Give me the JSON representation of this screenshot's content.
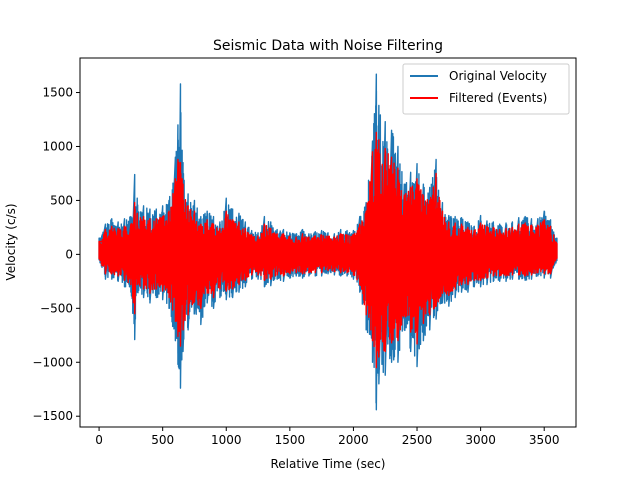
{
  "chart_data": {
    "type": "line",
    "title": "Seismic Data with Noise Filtering",
    "xlabel": "Relative Time (sec)",
    "ylabel": "Velocity (c/s)",
    "xlim": [
      -150,
      3750
    ],
    "ylim": [
      -1600,
      1820
    ],
    "xticks": [
      0,
      500,
      1000,
      1500,
      2000,
      2500,
      3000,
      3500
    ],
    "yticks": [
      -1500,
      -1000,
      -500,
      0,
      500,
      1000,
      1500
    ],
    "xtick_labels": [
      "0",
      "500",
      "1000",
      "1500",
      "2000",
      "2500",
      "3000",
      "3500"
    ],
    "ytick_labels": [
      "−1500",
      "−1000",
      "−500",
      "0",
      "500",
      "1000",
      "1500"
    ],
    "grid": false,
    "legend_position": "top-right",
    "series": [
      {
        "name": "Original Velocity",
        "color": "#1f77b4",
        "envelope": {
          "t": [
            0,
            50,
            100,
            150,
            200,
            250,
            280,
            300,
            350,
            400,
            450,
            500,
            550,
            600,
            620,
            640,
            660,
            700,
            750,
            800,
            850,
            900,
            950,
            1000,
            1050,
            1100,
            1150,
            1200,
            1250,
            1300,
            1350,
            1400,
            1450,
            1500,
            1550,
            1600,
            1650,
            1700,
            1750,
            1800,
            1850,
            1900,
            1950,
            2000,
            2050,
            2100,
            2150,
            2180,
            2200,
            2250,
            2300,
            2350,
            2400,
            2450,
            2500,
            2550,
            2600,
            2650,
            2700,
            2750,
            2800,
            2850,
            2900,
            2950,
            3000,
            3050,
            3100,
            3150,
            3200,
            3250,
            3300,
            3350,
            3400,
            3450,
            3500,
            3550,
            3600
          ],
          "upper": [
            150,
            280,
            330,
            300,
            330,
            350,
            740,
            520,
            450,
            420,
            420,
            450,
            500,
            900,
            1200,
            1580,
            850,
            560,
            500,
            350,
            400,
            350,
            300,
            520,
            420,
            380,
            300,
            220,
            200,
            350,
            300,
            230,
            230,
            200,
            190,
            230,
            190,
            210,
            220,
            200,
            190,
            230,
            220,
            220,
            350,
            480,
            1050,
            1670,
            1380,
            1230,
            1150,
            1000,
            650,
            760,
            840,
            650,
            620,
            880,
            480,
            360,
            350,
            340,
            300,
            260,
            360,
            310,
            300,
            280,
            290,
            300,
            340,
            350,
            330,
            330,
            400,
            320,
            150
          ],
          "lower": [
            -50,
            -230,
            -230,
            -250,
            -300,
            -350,
            -790,
            -350,
            -400,
            -450,
            -400,
            -420,
            -500,
            -800,
            -1020,
            -1240,
            -900,
            -700,
            -550,
            -650,
            -450,
            -500,
            -400,
            -420,
            -400,
            -350,
            -300,
            -230,
            -230,
            -300,
            -290,
            -230,
            -250,
            -220,
            -200,
            -220,
            -200,
            -200,
            -200,
            -180,
            -190,
            -200,
            -200,
            -230,
            -350,
            -700,
            -1000,
            -1440,
            -1200,
            -1120,
            -1000,
            -1000,
            -700,
            -900,
            -1040,
            -800,
            -700,
            -600,
            -450,
            -480,
            -400,
            -350,
            -350,
            -300,
            -300,
            -280,
            -250,
            -250,
            -250,
            -230,
            -230,
            -240,
            -230,
            -200,
            -220,
            -220,
            -60
          ]
        }
      },
      {
        "name": "Filtered (Events)",
        "color": "#ff0000",
        "envelope": {
          "t": [
            0,
            50,
            100,
            150,
            200,
            250,
            280,
            300,
            350,
            400,
            450,
            500,
            550,
            600,
            620,
            640,
            660,
            700,
            750,
            800,
            850,
            900,
            950,
            1000,
            1050,
            1100,
            1150,
            1200,
            1250,
            1300,
            1350,
            1400,
            1450,
            1500,
            1550,
            1600,
            1650,
            1700,
            1750,
            1800,
            1850,
            1900,
            1950,
            2000,
            2050,
            2100,
            2150,
            2180,
            2200,
            2250,
            2300,
            2350,
            2400,
            2450,
            2500,
            2550,
            2600,
            2650,
            2700,
            2750,
            2800,
            2850,
            2900,
            2950,
            3000,
            3050,
            3100,
            3150,
            3200,
            3250,
            3300,
            3350,
            3400,
            3450,
            3500,
            3550,
            3600
          ],
          "upper": [
            120,
            230,
            260,
            240,
            260,
            280,
            480,
            380,
            350,
            330,
            330,
            350,
            400,
            700,
            880,
            850,
            650,
            450,
            400,
            280,
            320,
            280,
            240,
            400,
            320,
            300,
            240,
            180,
            170,
            280,
            240,
            190,
            190,
            170,
            160,
            190,
            160,
            170,
            180,
            170,
            160,
            190,
            180,
            180,
            280,
            400,
            950,
            1130,
            1060,
            980,
            900,
            800,
            550,
            620,
            700,
            540,
            500,
            750,
            400,
            300,
            290,
            280,
            250,
            220,
            290,
            260,
            250,
            230,
            240,
            250,
            280,
            290,
            270,
            270,
            320,
            260,
            100
          ],
          "lower": [
            -40,
            -180,
            -180,
            -200,
            -240,
            -280,
            -550,
            -280,
            -320,
            -360,
            -320,
            -340,
            -400,
            -620,
            -760,
            -850,
            -700,
            -560,
            -440,
            -500,
            -360,
            -400,
            -320,
            -340,
            -320,
            -280,
            -240,
            -190,
            -190,
            -240,
            -230,
            -190,
            -200,
            -180,
            -170,
            -180,
            -170,
            -170,
            -170,
            -150,
            -160,
            -170,
            -170,
            -190,
            -280,
            -560,
            -800,
            -1050,
            -950,
            -900,
            -820,
            -800,
            -560,
            -720,
            -830,
            -640,
            -560,
            -480,
            -360,
            -380,
            -320,
            -280,
            -280,
            -240,
            -240,
            -220,
            -200,
            -200,
            -200,
            -190,
            -190,
            -200,
            -190,
            -170,
            -180,
            -180,
            -40
          ]
        }
      }
    ]
  }
}
